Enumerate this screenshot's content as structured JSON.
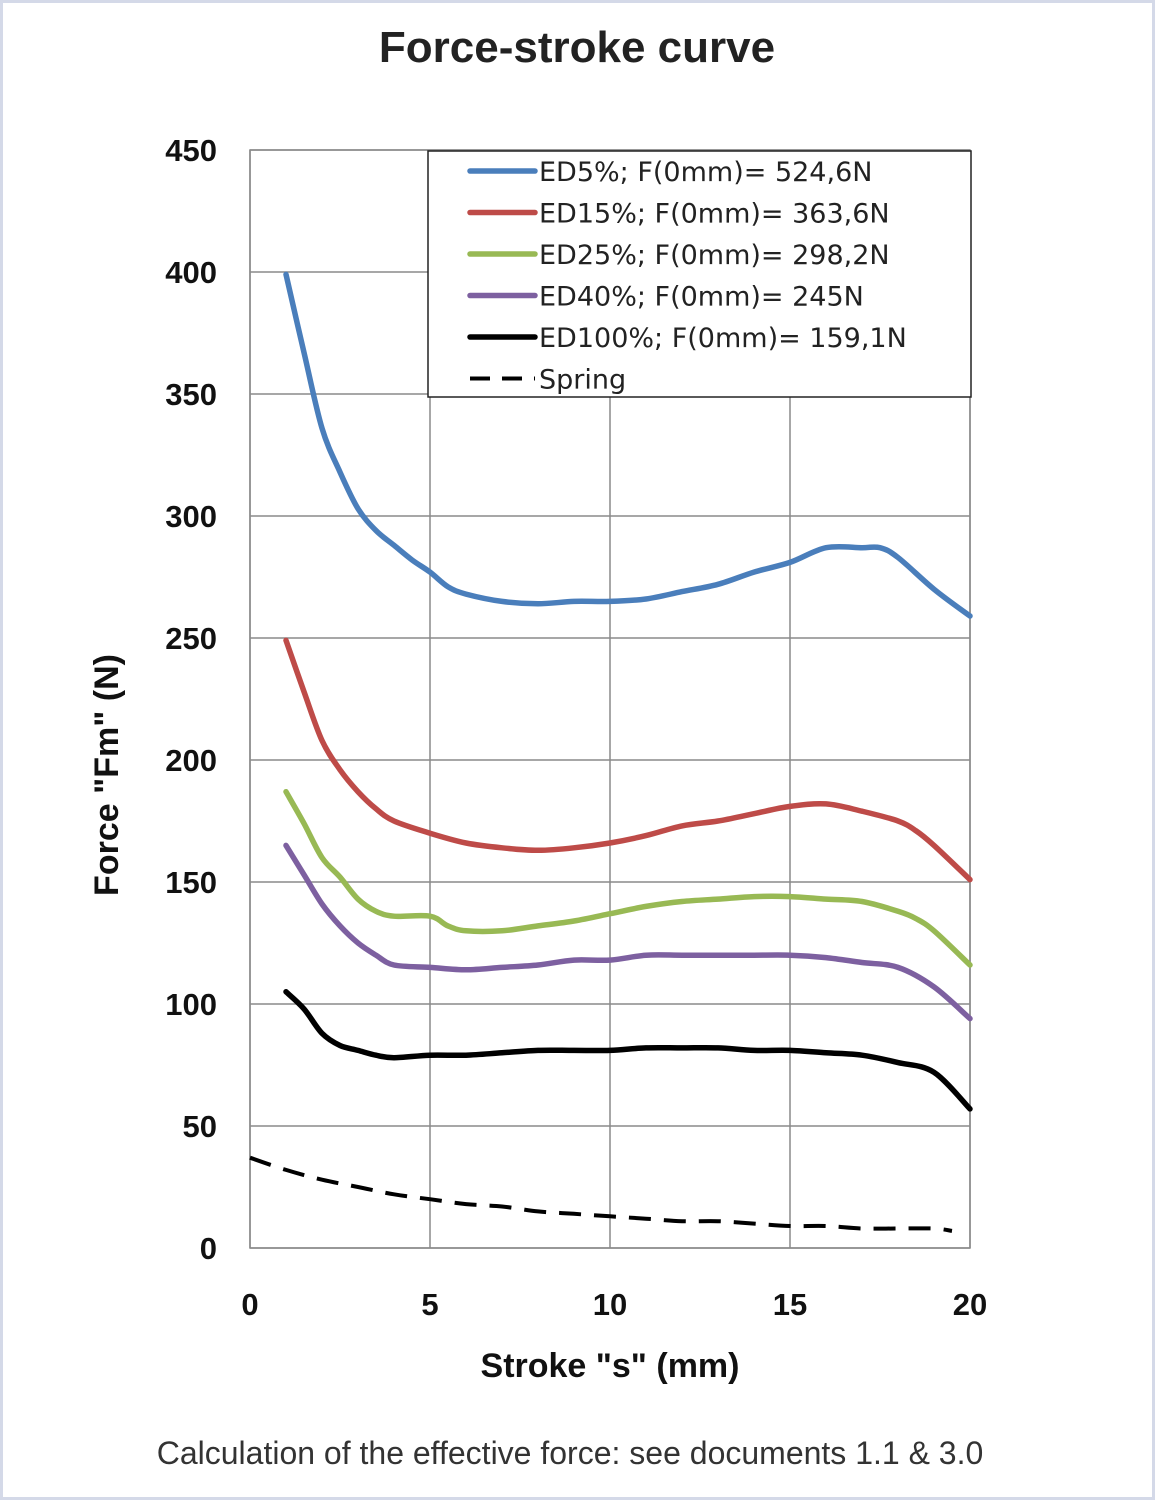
{
  "chart_data": {
    "type": "line",
    "title": "Force-stroke curve",
    "xlabel": "Stroke \"s\" (mm)",
    "ylabel": "Force \"Fm\" (N)",
    "xlim": [
      0,
      20
    ],
    "ylim": [
      0,
      450
    ],
    "xticks": [
      "0",
      "5",
      "10",
      "15",
      "20"
    ],
    "yticks": [
      "0",
      "50",
      "100",
      "150",
      "200",
      "250",
      "300",
      "350",
      "400",
      "450"
    ],
    "grid": true,
    "legend_position": "top-right",
    "series": [
      {
        "name": "ED5%; F(0mm)= 524,6N",
        "color": "#4a7ebb",
        "dash": false,
        "points": [
          [
            1,
            399
          ],
          [
            1.5,
            367
          ],
          [
            2,
            336
          ],
          [
            2.5,
            318
          ],
          [
            3,
            303
          ],
          [
            3.5,
            294
          ],
          [
            4,
            288
          ],
          [
            4.5,
            282
          ],
          [
            5,
            277
          ],
          [
            5.5,
            271
          ],
          [
            6,
            268
          ],
          [
            7,
            265
          ],
          [
            8,
            264
          ],
          [
            9,
            265
          ],
          [
            10,
            265
          ],
          [
            11,
            266
          ],
          [
            12,
            269
          ],
          [
            13,
            272
          ],
          [
            14,
            277
          ],
          [
            15,
            281
          ],
          [
            16,
            287
          ],
          [
            17,
            287
          ],
          [
            17.5,
            287
          ],
          [
            18,
            283
          ],
          [
            19,
            270
          ],
          [
            20,
            259
          ]
        ]
      },
      {
        "name": "ED15%; F(0mm)= 363,6N",
        "color": "#be4b48",
        "dash": false,
        "points": [
          [
            1,
            249
          ],
          [
            1.5,
            228
          ],
          [
            2,
            208
          ],
          [
            2.5,
            196
          ],
          [
            3,
            187
          ],
          [
            3.5,
            180
          ],
          [
            4,
            175
          ],
          [
            5,
            170
          ],
          [
            6,
            166
          ],
          [
            7,
            164
          ],
          [
            8,
            163
          ],
          [
            9,
            164
          ],
          [
            10,
            166
          ],
          [
            11,
            169
          ],
          [
            12,
            173
          ],
          [
            13,
            175
          ],
          [
            14,
            178
          ],
          [
            15,
            181
          ],
          [
            16,
            182
          ],
          [
            17,
            179
          ],
          [
            18,
            175
          ],
          [
            18.5,
            171
          ],
          [
            19,
            165
          ],
          [
            20,
            151
          ]
        ]
      },
      {
        "name": "ED25%; F(0mm)= 298,2N",
        "color": "#98b954",
        "dash": false,
        "points": [
          [
            1,
            187
          ],
          [
            1.5,
            174
          ],
          [
            2,
            160
          ],
          [
            2.5,
            152
          ],
          [
            3,
            143
          ],
          [
            3.5,
            138
          ],
          [
            4,
            136
          ],
          [
            5,
            136
          ],
          [
            5.5,
            132
          ],
          [
            6,
            130
          ],
          [
            7,
            130
          ],
          [
            8,
            132
          ],
          [
            9,
            134
          ],
          [
            10,
            137
          ],
          [
            11,
            140
          ],
          [
            12,
            142
          ],
          [
            13,
            143
          ],
          [
            14,
            144
          ],
          [
            15,
            144
          ],
          [
            16,
            143
          ],
          [
            17,
            142
          ],
          [
            18,
            138
          ],
          [
            18.5,
            135
          ],
          [
            19,
            130
          ],
          [
            20,
            116
          ]
        ]
      },
      {
        "name": "ED40%; F(0mm)= 245N",
        "color": "#7d60a0",
        "dash": false,
        "points": [
          [
            1,
            165
          ],
          [
            1.5,
            153
          ],
          [
            2,
            141
          ],
          [
            2.5,
            132
          ],
          [
            3,
            125
          ],
          [
            3.5,
            120
          ],
          [
            4,
            116
          ],
          [
            5,
            115
          ],
          [
            6,
            114
          ],
          [
            7,
            115
          ],
          [
            8,
            116
          ],
          [
            9,
            118
          ],
          [
            10,
            118
          ],
          [
            11,
            120
          ],
          [
            12,
            120
          ],
          [
            13,
            120
          ],
          [
            14,
            120
          ],
          [
            15,
            120
          ],
          [
            16,
            119
          ],
          [
            17,
            117
          ],
          [
            18,
            115
          ],
          [
            19,
            107
          ],
          [
            20,
            94
          ]
        ]
      },
      {
        "name": "ED100%; F(0mm)= 159,1N",
        "color": "#000000",
        "dash": false,
        "points": [
          [
            1,
            105
          ],
          [
            1.5,
            98
          ],
          [
            2,
            88
          ],
          [
            2.5,
            83
          ],
          [
            3,
            81
          ],
          [
            3.5,
            79
          ],
          [
            4,
            78
          ],
          [
            5,
            79
          ],
          [
            6,
            79
          ],
          [
            7,
            80
          ],
          [
            8,
            81
          ],
          [
            9,
            81
          ],
          [
            10,
            81
          ],
          [
            11,
            82
          ],
          [
            12,
            82
          ],
          [
            13,
            82
          ],
          [
            14,
            81
          ],
          [
            15,
            81
          ],
          [
            16,
            80
          ],
          [
            17,
            79
          ],
          [
            18,
            76
          ],
          [
            19,
            72
          ],
          [
            20,
            57
          ]
        ]
      },
      {
        "name": "Spring",
        "color": "#000000",
        "dash": true,
        "points": [
          [
            0,
            37
          ],
          [
            1,
            32
          ],
          [
            2,
            28
          ],
          [
            3,
            25
          ],
          [
            4,
            22
          ],
          [
            5,
            20
          ],
          [
            6,
            18
          ],
          [
            7,
            17
          ],
          [
            8,
            15
          ],
          [
            9,
            14
          ],
          [
            10,
            13
          ],
          [
            11,
            12
          ],
          [
            12,
            11
          ],
          [
            13,
            11
          ],
          [
            14,
            10
          ],
          [
            15,
            9
          ],
          [
            16,
            9
          ],
          [
            17,
            8
          ],
          [
            18,
            8
          ],
          [
            19,
            8
          ],
          [
            19.5,
            7
          ]
        ]
      }
    ]
  },
  "caption": "Calculation of the effective force: see documents 1.1 & 3.0"
}
